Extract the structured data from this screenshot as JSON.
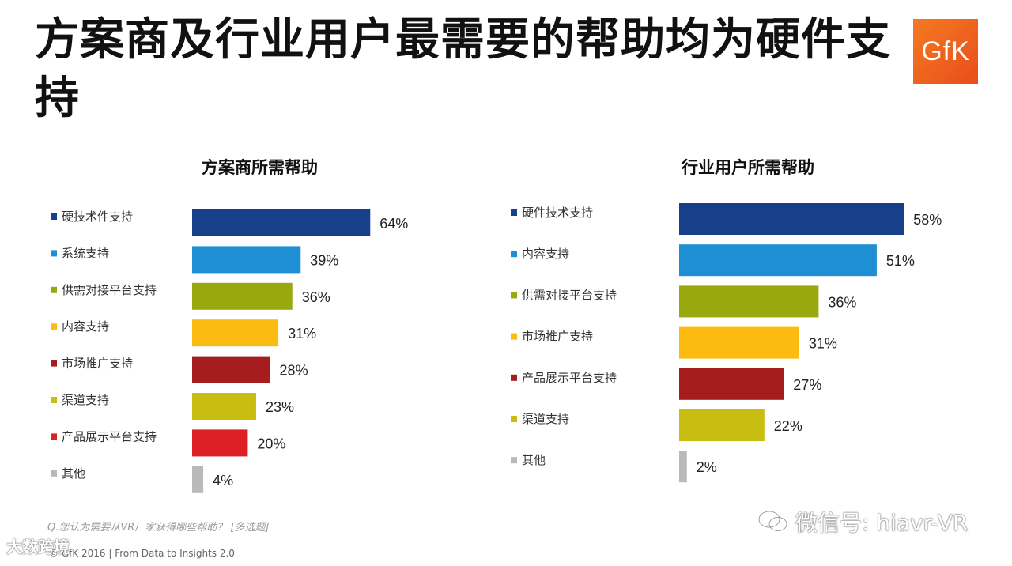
{
  "page": {
    "title": "方案商及行业用户最需要的帮助均为硬件支持",
    "logo": "GfK",
    "footnote": "Q.您认为需要从VR厂家获得哪些帮助？ [多选题]",
    "source": "© GfK 2016 | From Data to Insights 2.0",
    "watermark_left": "大数跨境",
    "watermark_right": "微信号: hiavr-VR"
  },
  "chart_data": [
    {
      "type": "bar",
      "orientation": "horizontal",
      "title": "方案商所需帮助",
      "categories": [
        "硬技术件支持",
        "系统支持",
        "供需对接平台支持",
        "内容支持",
        "市场推广支持",
        "渠道支持",
        "产品展示平台支持",
        "其他"
      ],
      "values": [
        64,
        39,
        36,
        31,
        28,
        23,
        20,
        4
      ],
      "value_labels": [
        "64%",
        "39%",
        "36%",
        "31%",
        "28%",
        "23%",
        "20%",
        "4%"
      ],
      "colors": [
        "#173f8a",
        "#1d8fd2",
        "#9aa80f",
        "#fcbb11",
        "#a51d1f",
        "#c8be12",
        "#df1f26",
        "#b9b9b9"
      ],
      "unit": "%"
    },
    {
      "type": "bar",
      "orientation": "horizontal",
      "title": "行业用户所需帮助",
      "categories": [
        "硬件技术支持",
        "内容支持",
        "供需对接平台支持",
        "市场推广支持",
        "产品展示平台支持",
        "渠道支持",
        "其他"
      ],
      "values": [
        58,
        51,
        36,
        31,
        27,
        22,
        2
      ],
      "value_labels": [
        "58%",
        "51%",
        "36%",
        "31%",
        "27%",
        "22%",
        "2%"
      ],
      "colors": [
        "#173f8a",
        "#1d8fd2",
        "#9aa80f",
        "#fcbb11",
        "#a51d1f",
        "#c8be12",
        "#b9b9b9"
      ],
      "unit": "%"
    }
  ]
}
